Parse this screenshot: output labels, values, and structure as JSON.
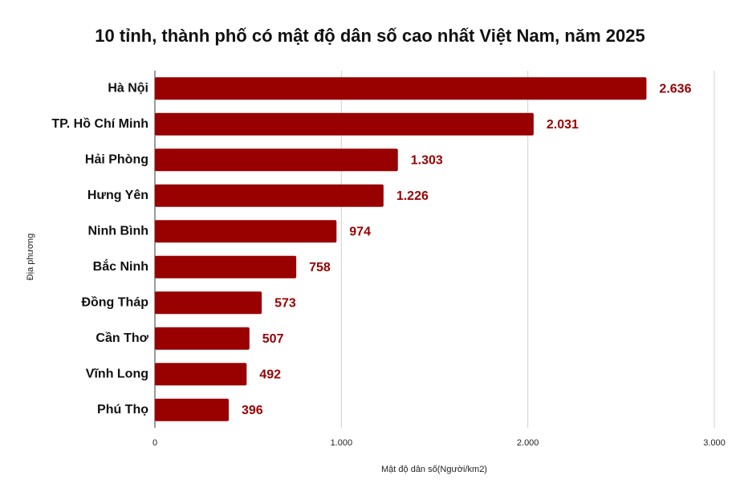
{
  "chart_data": {
    "type": "bar",
    "orientation": "horizontal",
    "title": "10 tỉnh, thành phố có mật độ dân số cao nhất Việt Nam, năm 2025",
    "x_label": "Mật độ dân số(Người/km2)",
    "y_label": "Địa phương",
    "categories": [
      "Hà Nội",
      "TP. Hồ Chí Minh",
      "Hải Phòng",
      "Hưng Yên",
      "Ninh Bình",
      "Bắc Ninh",
      "Đồng Tháp",
      "Cần Thơ",
      "Vĩnh Long",
      "Phú Thọ"
    ],
    "values": [
      2636,
      2031,
      1303,
      1226,
      974,
      758,
      573,
      507,
      492,
      396
    ],
    "value_labels": [
      "2.636",
      "2.031",
      "1.303",
      "1.226",
      "974",
      "758",
      "573",
      "507",
      "492",
      "396"
    ],
    "color": "#990000",
    "label_color": "#990000",
    "xlim": [
      0,
      3000
    ],
    "xticks": [
      0,
      {
        "value": 1000,
        "label": "1.000"
      },
      {
        "value": 2000,
        "label": "2.000"
      },
      {
        "value": 3000,
        "label": "3.000"
      }
    ],
    "grid": true
  }
}
